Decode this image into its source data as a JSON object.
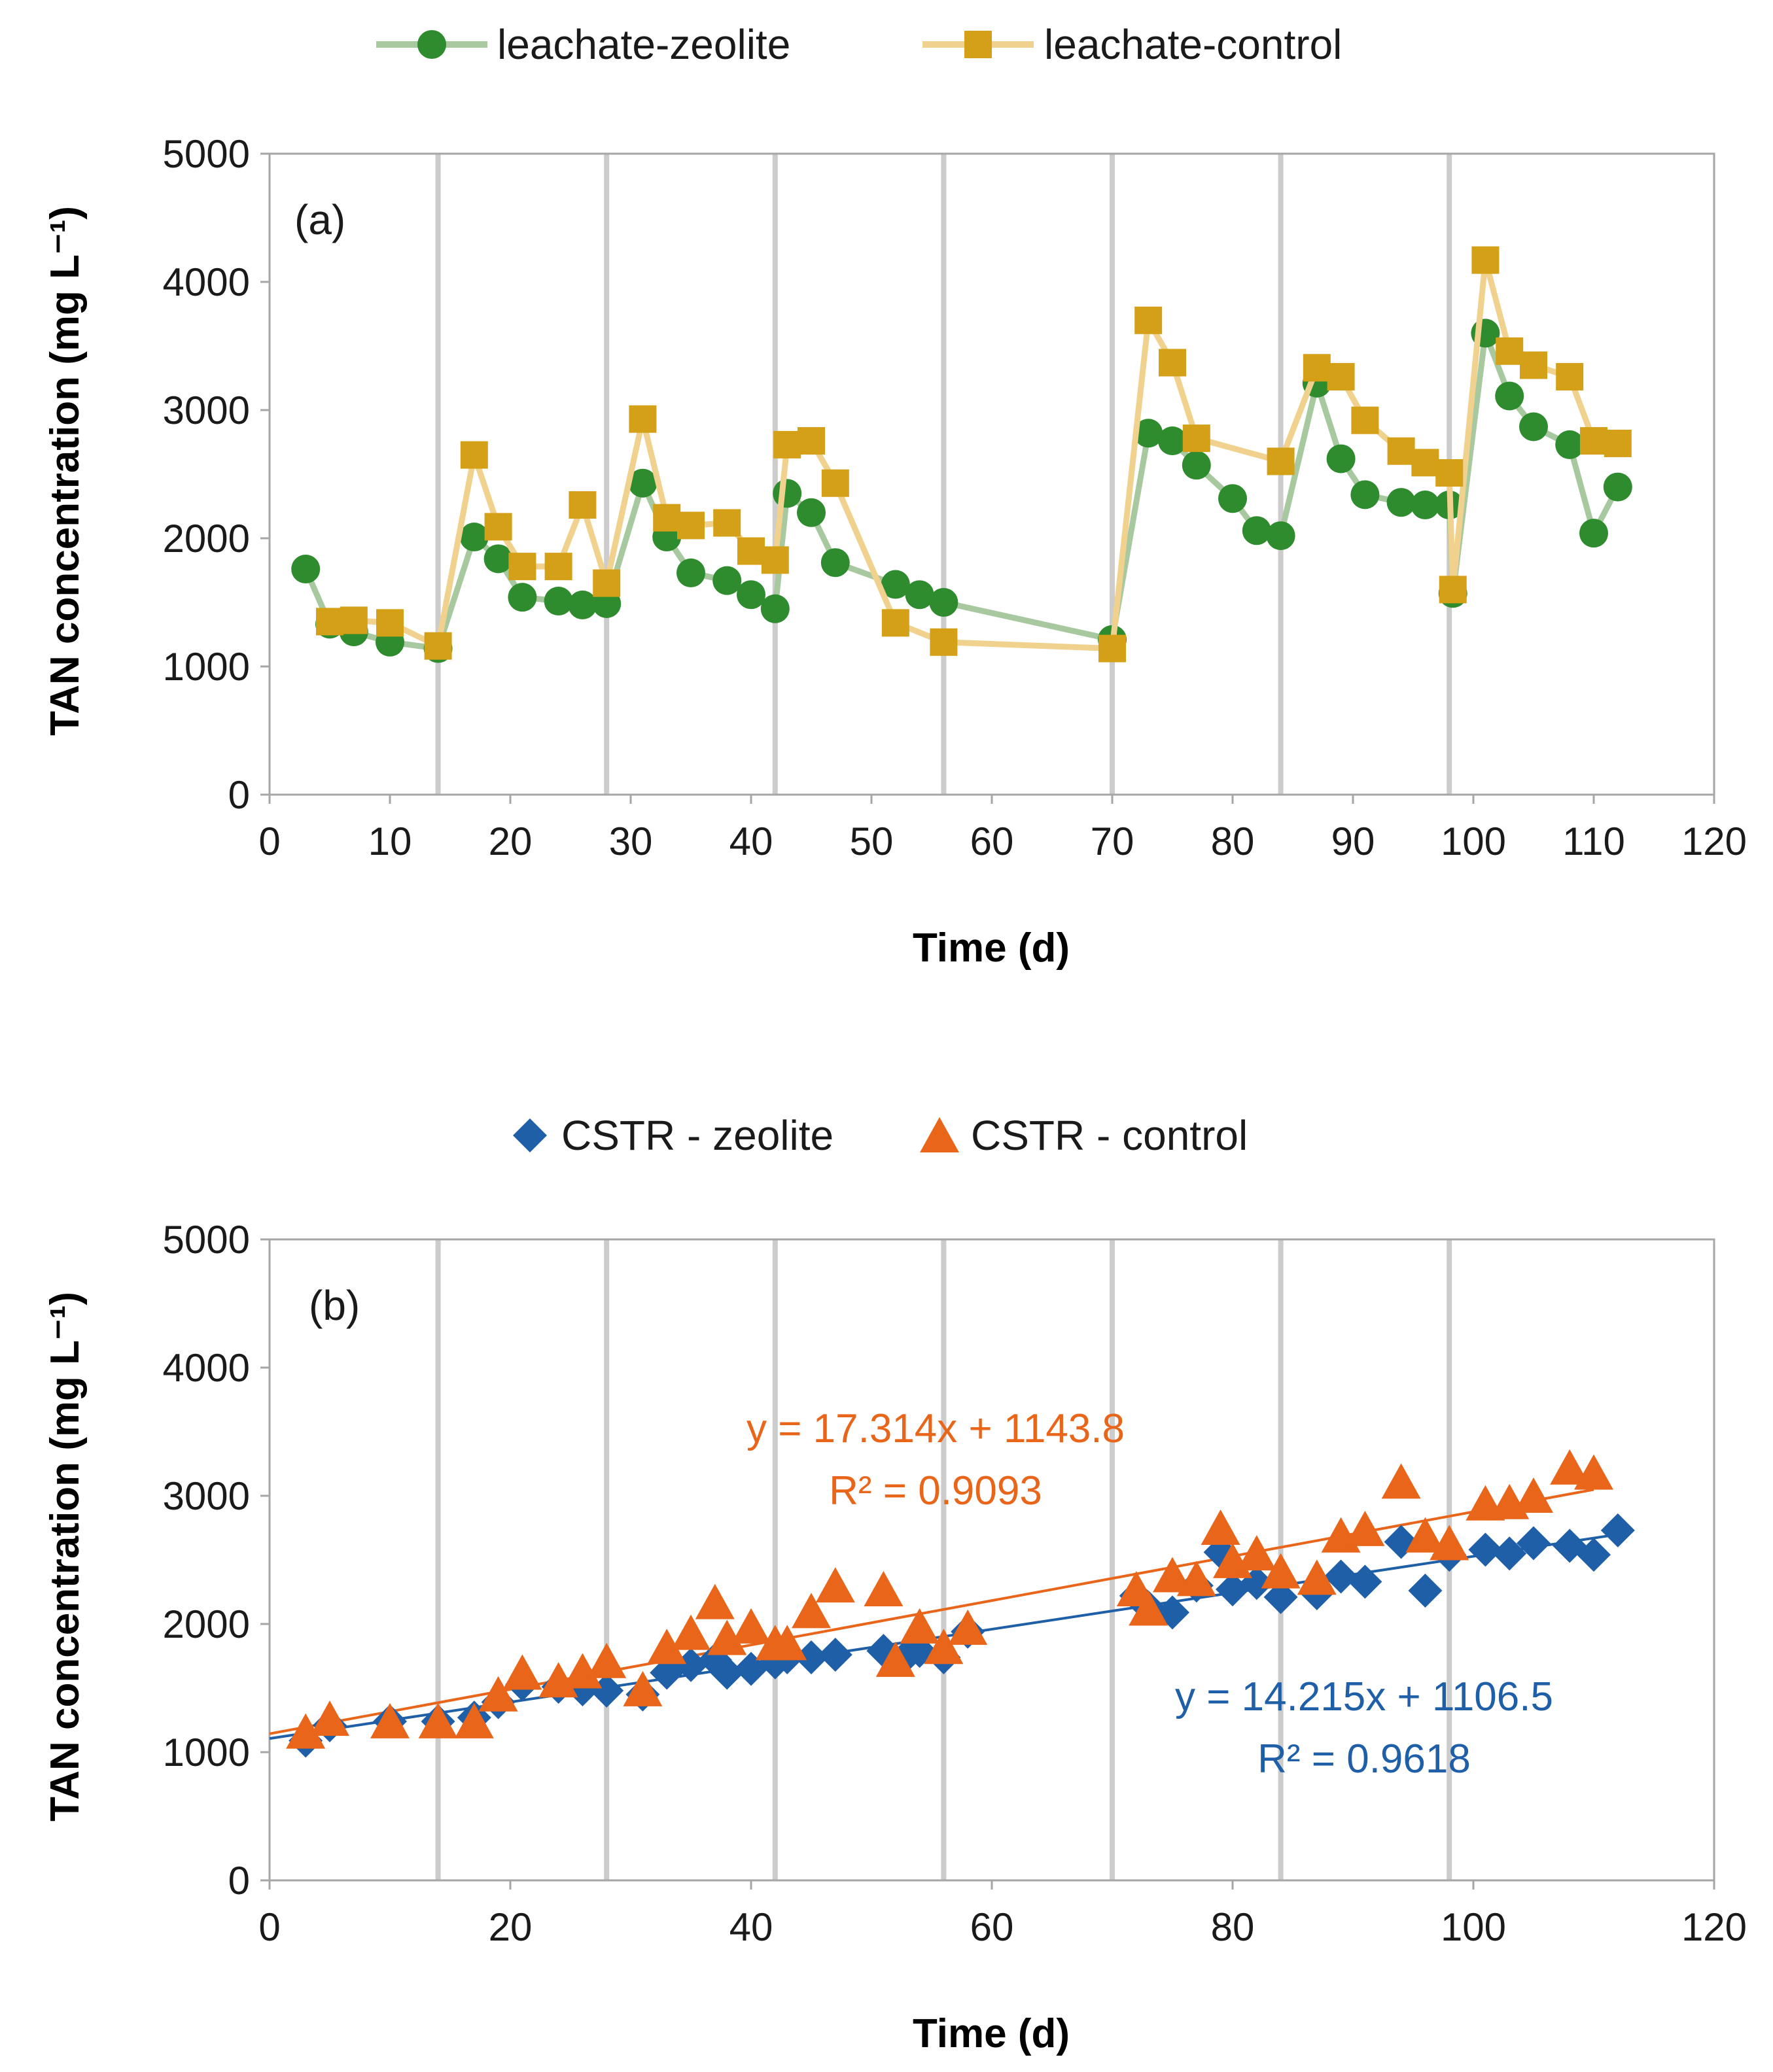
{
  "chart_data": [
    {
      "type": "line",
      "panel_label": "(a)",
      "xlabel": "Time (d)",
      "ylabel": "TAN concentration (mg L⁻¹)",
      "xlim": [
        0,
        120
      ],
      "ylim": [
        0,
        5000
      ],
      "xticks": [
        0,
        10,
        20,
        30,
        40,
        50,
        60,
        70,
        80,
        90,
        100,
        110,
        120
      ],
      "yticks": [
        0,
        1000,
        2000,
        3000,
        4000,
        5000
      ],
      "grid": "vertical lines at feeding days",
      "vlines": [
        14,
        28,
        42,
        56,
        70,
        84,
        98
      ],
      "legend_position": "top",
      "series": [
        {
          "name": "leachate-zeolite",
          "marker": "circle",
          "color": "#2e8b2e",
          "line_color": "#a8c9a0",
          "x": [
            3,
            5,
            7,
            10,
            14,
            17,
            19,
            21,
            24,
            26,
            28,
            31,
            33,
            35,
            38,
            40,
            42,
            43,
            45,
            47,
            52,
            54,
            56,
            70,
            73,
            75,
            77,
            80,
            82,
            84,
            87,
            89,
            91,
            94,
            96,
            98,
            98.3,
            101,
            103,
            105,
            108,
            110,
            112
          ],
          "y": [
            1760,
            1330,
            1270,
            1190,
            1140,
            2010,
            1840,
            1540,
            1510,
            1480,
            1490,
            2430,
            2010,
            1730,
            1670,
            1560,
            1450,
            2350,
            2200,
            1810,
            1640,
            1560,
            1500,
            1210,
            2820,
            2760,
            2570,
            2310,
            2060,
            2020,
            3210,
            2620,
            2340,
            2280,
            2260,
            2260,
            1570,
            3600,
            3110,
            2870,
            2730,
            2040,
            2400
          ]
        },
        {
          "name": "leachate-control",
          "marker": "square",
          "color": "#d4a017",
          "line_color": "#f0d28e",
          "x": [
            5,
            7,
            10,
            14,
            17,
            19,
            21,
            24,
            26,
            28,
            31,
            33,
            35,
            38,
            40,
            42,
            43,
            45,
            47,
            52,
            56,
            70,
            73,
            75,
            77,
            84,
            87,
            89,
            91,
            94,
            96,
            98,
            98.3,
            101,
            103,
            105,
            108,
            110,
            112
          ],
          "y": [
            1350,
            1360,
            1340,
            1160,
            2650,
            2090,
            1780,
            1780,
            2260,
            1650,
            2930,
            2160,
            2100,
            2120,
            1900,
            1830,
            2730,
            2760,
            2430,
            1340,
            1190,
            1140,
            3700,
            3370,
            2780,
            2600,
            3330,
            3260,
            2920,
            2680,
            2590,
            2510,
            1600,
            4170,
            3460,
            3350,
            3260,
            2760,
            2740
          ]
        }
      ]
    },
    {
      "type": "scatter",
      "panel_label": "(b)",
      "xlabel": "Time (d)",
      "ylabel": "TAN concentration (mg L⁻¹)",
      "xlim": [
        0,
        120
      ],
      "ylim": [
        0,
        5000
      ],
      "xticks": [
        0,
        20,
        40,
        60,
        80,
        100,
        120
      ],
      "yticks": [
        0,
        1000,
        2000,
        3000,
        4000,
        5000
      ],
      "grid": "vertical lines at feeding days",
      "vlines": [
        14,
        28,
        42,
        56,
        70,
        84,
        98
      ],
      "legend_position": "top",
      "series": [
        {
          "name": "CSTR - zeolite",
          "marker": "diamond",
          "color": "#1f5fa8",
          "x": [
            3,
            5,
            10,
            14,
            17,
            19,
            21,
            24,
            26,
            28,
            31,
            33,
            35,
            37,
            38,
            40,
            42,
            43,
            45,
            47,
            51,
            53,
            54,
            56,
            58,
            72,
            73,
            75,
            77,
            79,
            80,
            82,
            84,
            87,
            89,
            91,
            94,
            96,
            98,
            101,
            103,
            105,
            108,
            110,
            112
          ],
          "y": [
            1090,
            1210,
            1240,
            1240,
            1270,
            1390,
            1530,
            1510,
            1490,
            1480,
            1450,
            1620,
            1680,
            1720,
            1620,
            1650,
            1700,
            1740,
            1740,
            1760,
            1790,
            1760,
            1790,
            1740,
            1940,
            2220,
            2130,
            2090,
            2300,
            2560,
            2270,
            2320,
            2210,
            2240,
            2370,
            2330,
            2640,
            2260,
            2540,
            2580,
            2550,
            2630,
            2610,
            2540,
            2730
          ]
        },
        {
          "name": "CSTR - control",
          "marker": "triangle",
          "color": "#e8651a",
          "x": [
            3,
            5,
            10,
            14,
            17,
            19,
            21,
            24,
            26,
            28,
            31,
            33,
            35,
            37,
            38,
            40,
            42,
            43,
            45,
            47,
            51,
            52,
            54,
            56,
            58,
            72,
            73,
            75,
            77,
            79,
            80,
            82,
            84,
            87,
            89,
            91,
            94,
            96,
            98,
            101,
            103,
            105,
            108,
            110
          ],
          "y": [
            1150,
            1250,
            1230,
            1230,
            1230,
            1440,
            1610,
            1550,
            1620,
            1700,
            1480,
            1810,
            1920,
            2160,
            1880,
            1970,
            1840,
            1840,
            2090,
            2290,
            2260,
            1710,
            1970,
            1810,
            1960,
            2260,
            2110,
            2370,
            2340,
            2740,
            2480,
            2540,
            2400,
            2350,
            2680,
            2730,
            3100,
            2680,
            2620,
            2930,
            2940,
            2990,
            3210,
            3170
          ]
        }
      ],
      "trendlines": [
        {
          "series": "CSTR - control",
          "slope": 17.314,
          "intercept": 1143.8,
          "x_range": [
            0,
            110
          ],
          "equation": "y = 17.314x + 1143.8",
          "r2": "R² = 0.9093",
          "color": "#e8651a"
        },
        {
          "series": "CSTR - zeolite",
          "slope": 14.215,
          "intercept": 1106.5,
          "x_range": [
            0,
            112
          ],
          "equation": "y = 14.215x + 1106.5",
          "r2": "R² = 0.9618",
          "color": "#1f5fa8"
        }
      ]
    }
  ]
}
